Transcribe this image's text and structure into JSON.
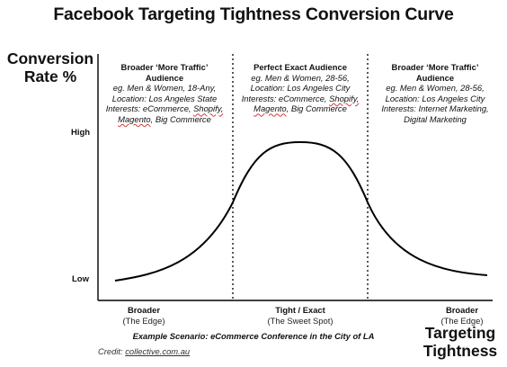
{
  "title": "Facebook Targeting Tightness Conversion Curve",
  "y_axis": {
    "label_line1": "Conversion",
    "label_line2": "Rate %",
    "tick_high": "High",
    "tick_low": "Low"
  },
  "x_axis": {
    "label_line1": "Targeting",
    "label_line2": "Tightness"
  },
  "segments": [
    {
      "heading1": "Broader ‘More Traffic’",
      "heading2": "Audience",
      "line1": "eg. Men & Women, 18-Any,",
      "line2": "Location: Los Angeles State",
      "line3_pre": "Interests:  eCommerce, ",
      "line3_u": "Shopify,",
      "line4_u": "Magento",
      "line4_post": ", Big Commerce"
    },
    {
      "heading1": "Perfect Exact Audience",
      "line1": "eg. Men & Women, 28-56,",
      "line2": "Location: Los Angeles City",
      "line3_pre": "Interests:  eCommerce, ",
      "line3_u": "Shopify,",
      "line4_u": "Magento",
      "line4_post": ", Big Commerce"
    },
    {
      "heading1": "Broader ‘More Traffic’",
      "heading2": "Audience",
      "line1": "eg. Men & Women, 28-56,",
      "line2": "Location: Los Angeles City",
      "line3": "Interests:  Internet Marketing,",
      "line4": "Digital Marketing"
    }
  ],
  "x_categories": [
    {
      "label": "Broader",
      "sub": "(The Edge)"
    },
    {
      "label": "Tight / Exact",
      "sub": "(The Sweet Spot)"
    },
    {
      "label": "Broader",
      "sub": "(The Edge)"
    }
  ],
  "scenario": "Example Scenario: eCommerce Conference in the City of LA",
  "credit": {
    "prefix": "Credit: ",
    "link": "collective.com.au"
  },
  "colors": {
    "curve": "#000000",
    "axis": "#000000",
    "divider": "#000000"
  }
}
